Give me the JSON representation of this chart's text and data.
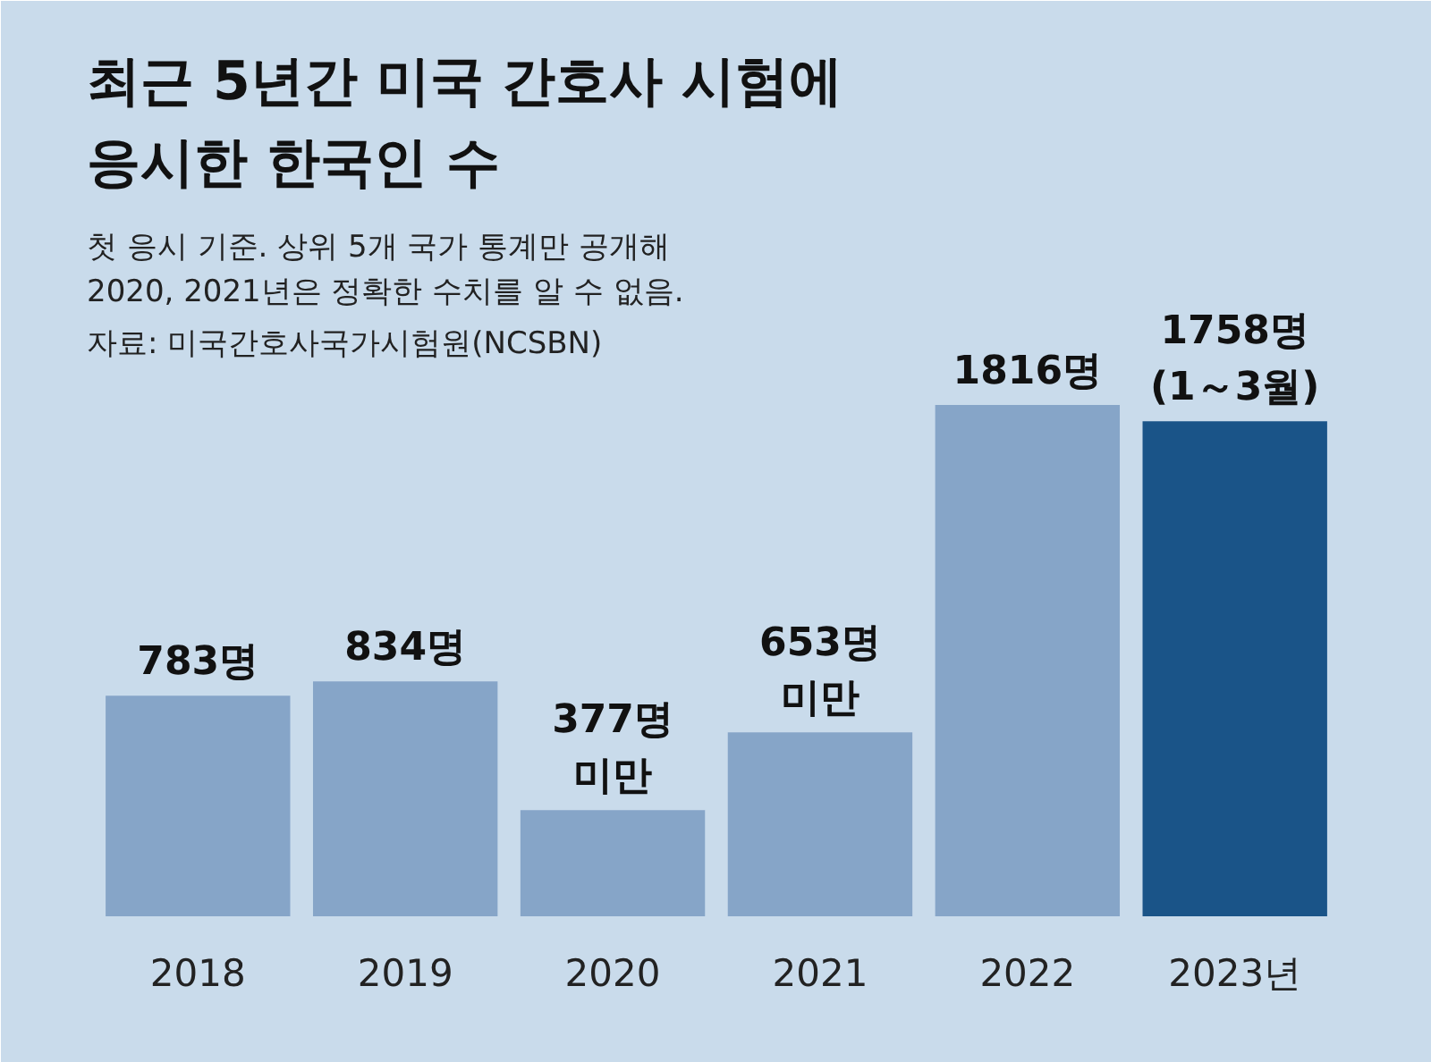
{
  "chart_data": {
    "type": "bar",
    "title": "최근 5년간 미국 간호사 시험에\n응시한 한국인 수",
    "subtitle": "첫 응시 기준. 상위 5개 국가 통계만 공개해\n2020, 2021년은 정확한 수치를 알 수 없음.",
    "annotations": [
      "자료: 미국간호사국가시험원(NCSBN)"
    ],
    "categories": [
      "2018",
      "2019",
      "2020",
      "2021",
      "2022",
      "2023년"
    ],
    "values": [
      783,
      834,
      377,
      653,
      1816,
      1758
    ],
    "colors": [
      "#86a5c8",
      "#86a5c8",
      "#86a5c8",
      "#86a5c8",
      "#86a5c8",
      "#1a5488"
    ],
    "value_labels": [
      "783명",
      "834명",
      "377명\n미만",
      "653명\n미만",
      "1816명",
      "1758명\n(1～3월)"
    ]
  }
}
